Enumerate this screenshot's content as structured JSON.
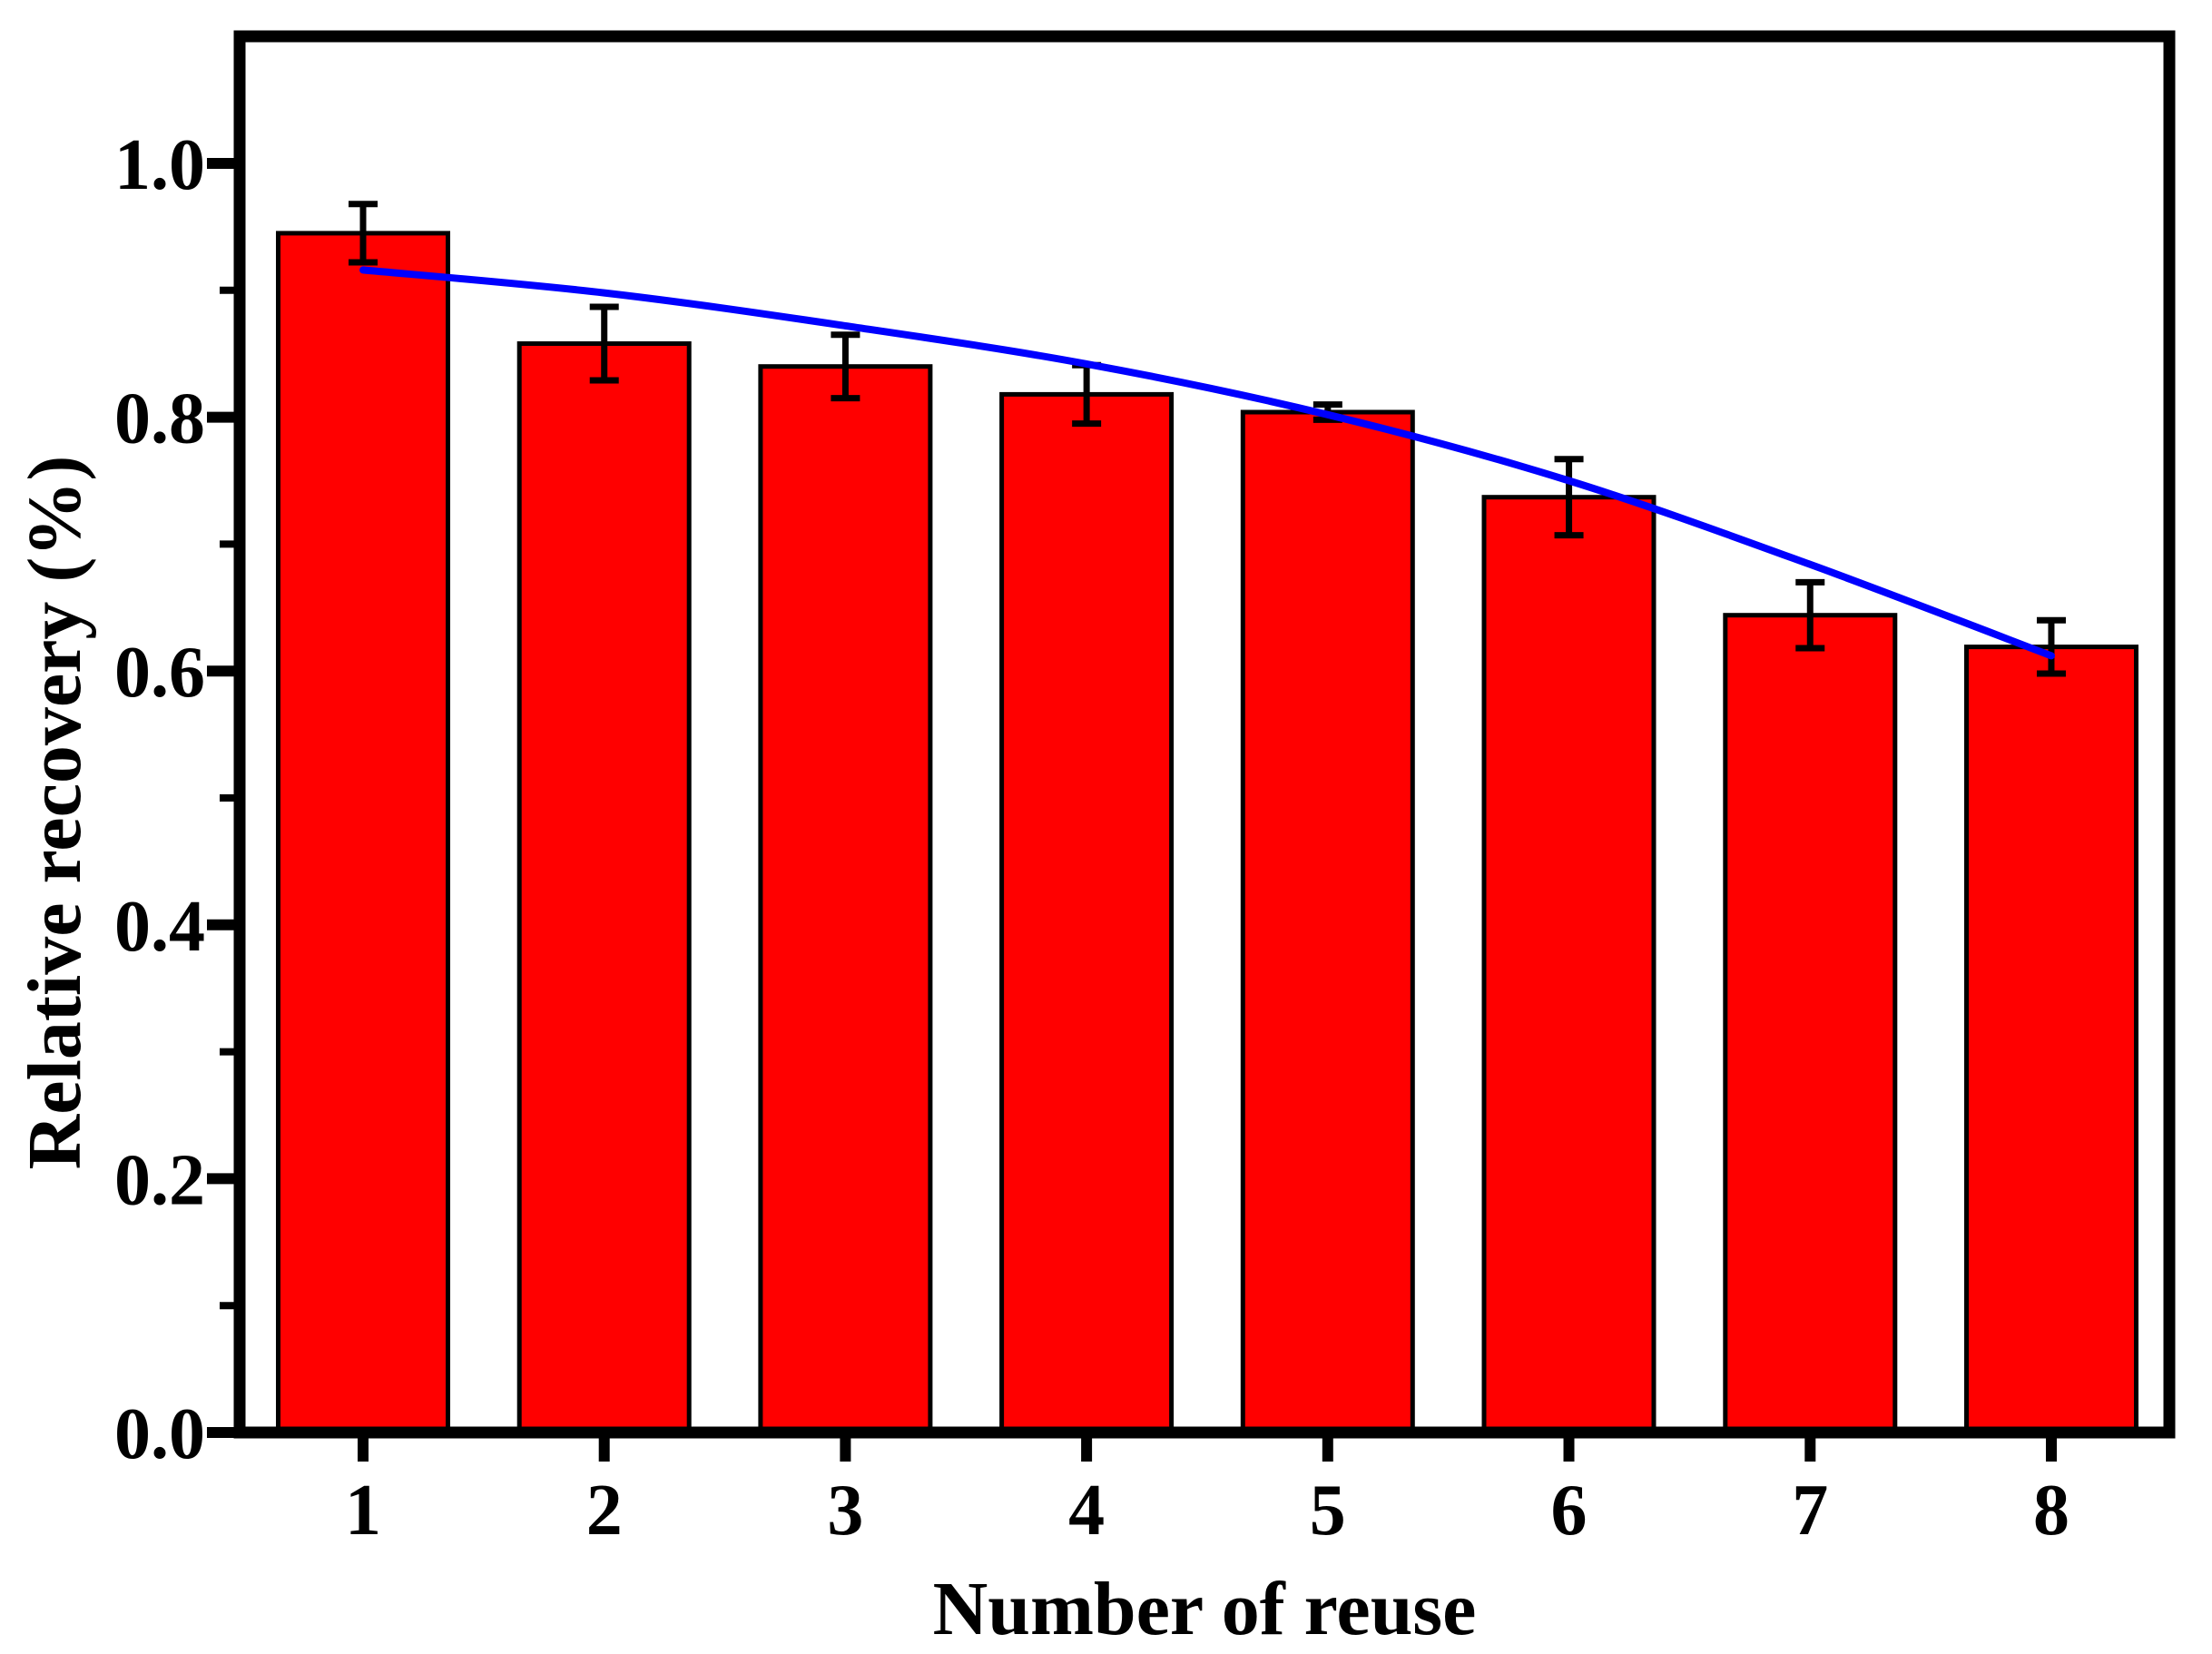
{
  "chart_data": {
    "type": "bar",
    "title": "",
    "xlabel": "Number of reuse",
    "ylabel": "Relative recovery (%)",
    "categories": [
      "1",
      "2",
      "3",
      "4",
      "5",
      "6",
      "7",
      "8"
    ],
    "values": [
      0.945,
      0.858,
      0.84,
      0.818,
      0.804,
      0.737,
      0.644,
      0.619
    ],
    "error_bars": [
      0.023,
      0.029,
      0.025,
      0.023,
      0.006,
      0.03,
      0.026,
      0.021
    ],
    "series": [
      {
        "name": "relative-recovery-bars",
        "type": "bar",
        "values": [
          0.945,
          0.858,
          0.84,
          0.818,
          0.804,
          0.737,
          0.644,
          0.619
        ]
      },
      {
        "name": "trend-curve",
        "type": "line",
        "x": [
          1,
          2,
          3,
          4,
          5,
          6,
          7,
          8
        ],
        "values": [
          0.916,
          0.898,
          0.872,
          0.842,
          0.802,
          0.75,
          0.684,
          0.612
        ]
      }
    ],
    "xlim": [
      0.5,
      8.5
    ],
    "ylim": [
      0.0,
      1.1
    ],
    "y_major_ticks": [
      0.0,
      0.2,
      0.4,
      0.6,
      0.8,
      1.0
    ],
    "y_major_tick_labels": [
      "0.0",
      "0.2",
      "0.4",
      "0.6",
      "0.8",
      "1.0"
    ],
    "y_minor_ticks": [
      0.1,
      0.3,
      0.5,
      0.7,
      0.9
    ],
    "grid": false,
    "legend": "none",
    "colors": {
      "bar_fill": "#ff0000",
      "bar_border": "#000000",
      "error_bar": "#000000",
      "trend_line": "#0000ff",
      "axis": "#000000",
      "background": "#ffffff"
    }
  }
}
